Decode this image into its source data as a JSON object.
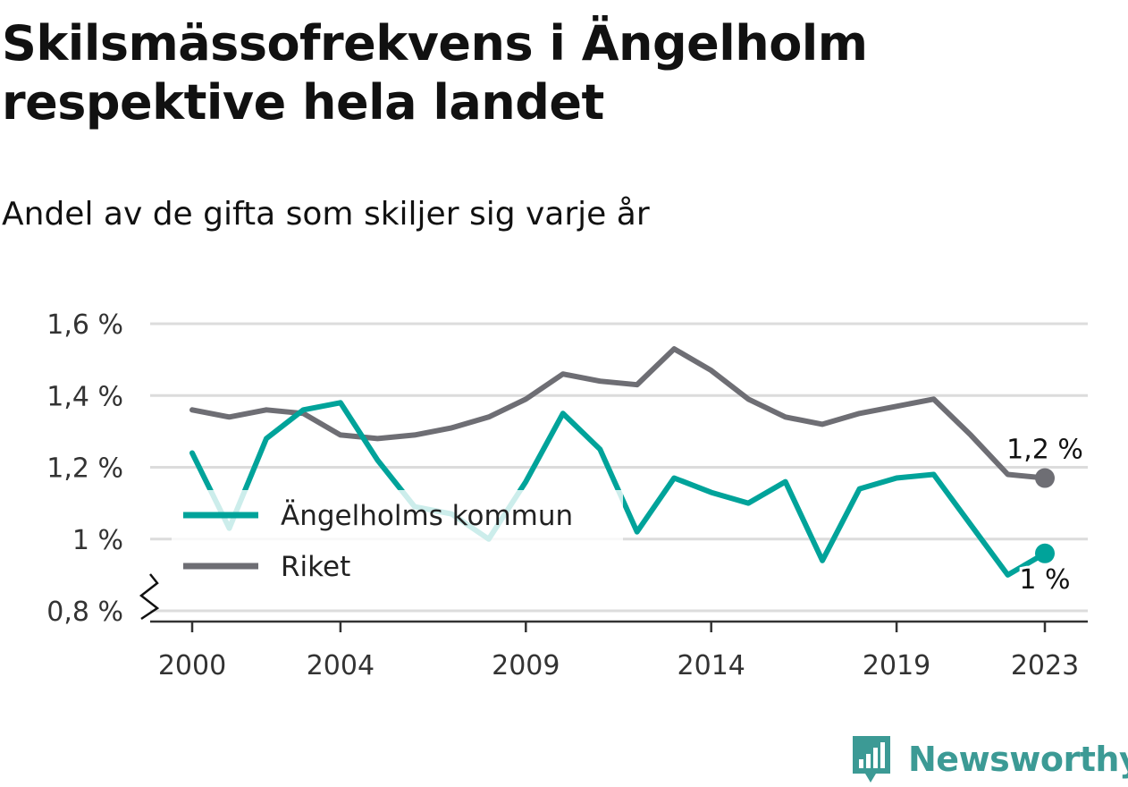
{
  "chart_data": {
    "type": "line",
    "title": "Skilsmässofrekvens i Ängelholm respektive hela landet",
    "subtitle": "Andel av de gifta som skiljer sig varje år",
    "x": [
      2000,
      2001,
      2002,
      2003,
      2004,
      2005,
      2006,
      2007,
      2008,
      2009,
      2010,
      2011,
      2012,
      2013,
      2014,
      2015,
      2016,
      2017,
      2018,
      2019,
      2020,
      2021,
      2022,
      2023
    ],
    "series": [
      {
        "name": "Ängelholms kommun",
        "color": "#00a39a",
        "values": [
          1.24,
          1.03,
          1.28,
          1.36,
          1.38,
          1.22,
          1.09,
          1.07,
          1.0,
          1.16,
          1.35,
          1.25,
          1.02,
          1.17,
          1.13,
          1.1,
          1.16,
          0.94,
          1.14,
          1.17,
          1.18,
          1.04,
          0.9,
          0.96
        ],
        "end_label": "1 %"
      },
      {
        "name": "Riket",
        "color": "#6e6e74",
        "values": [
          1.36,
          1.34,
          1.36,
          1.35,
          1.29,
          1.28,
          1.29,
          1.31,
          1.34,
          1.39,
          1.46,
          1.44,
          1.43,
          1.53,
          1.47,
          1.39,
          1.34,
          1.32,
          1.35,
          1.37,
          1.39,
          1.29,
          1.18,
          1.17
        ],
        "end_label": "1,2 %"
      }
    ],
    "y_ticks": [
      {
        "value": 0.8,
        "label": "0,8 %"
      },
      {
        "value": 1.0,
        "label": "1 %"
      },
      {
        "value": 1.2,
        "label": "1,2 %"
      },
      {
        "value": 1.4,
        "label": "1,4 %"
      },
      {
        "value": 1.6,
        "label": "1,6 %"
      }
    ],
    "x_ticks": [
      {
        "value": 2000,
        "label": "2000"
      },
      {
        "value": 2004,
        "label": "2004"
      },
      {
        "value": 2009,
        "label": "2009"
      },
      {
        "value": 2014,
        "label": "2014"
      },
      {
        "value": 2019,
        "label": "2019"
      },
      {
        "value": 2023,
        "label": "2023"
      }
    ],
    "ylim": [
      0.8,
      1.6
    ],
    "xlim": [
      2000,
      2023
    ],
    "grid": true,
    "axis_break": true,
    "legend_placement": "center-left"
  },
  "brand": {
    "name": "Newsworthy",
    "color": "#3c9a95",
    "icon": "bar-chart-speech-bubble-icon"
  }
}
